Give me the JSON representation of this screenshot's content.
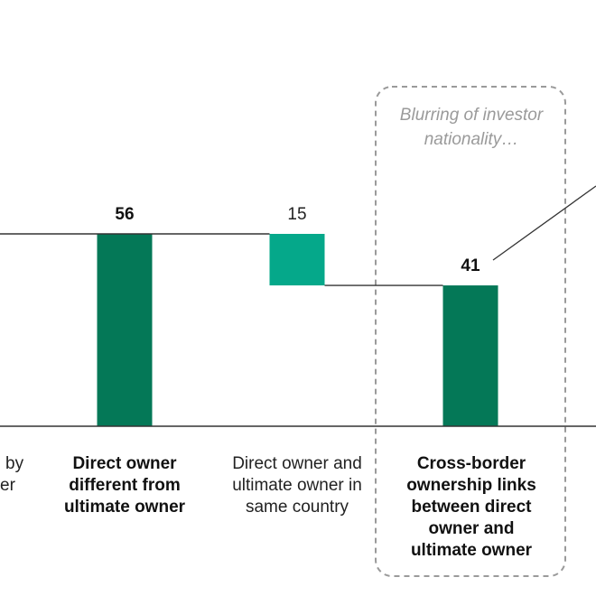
{
  "chart_data": {
    "type": "bar",
    "subtype": "waterfall",
    "categories": [
      "Direct owner different from ultimate owner",
      "Direct owner and ultimate owner in same country",
      "Cross-border ownership links between direct owner and ultimate owner"
    ],
    "values": [
      56,
      -15,
      41
    ],
    "value_labels": [
      "56",
      "15",
      "41"
    ],
    "kinds": [
      "total",
      "delta",
      "total"
    ],
    "bold_labels": [
      true,
      false,
      true
    ],
    "bold_values": [
      true,
      false,
      true
    ],
    "colors": {
      "total": "#047857",
      "delta": "#05a88a",
      "connector": "#333333",
      "baseline": "#333333",
      "box": "#9a9a9a"
    },
    "ylim": [
      0,
      56
    ],
    "grid": false,
    "annotation": "Blurring of investor nationality…",
    "cut_off_labels": [
      {
        "line1": "by",
        "line2": "er"
      }
    ]
  }
}
